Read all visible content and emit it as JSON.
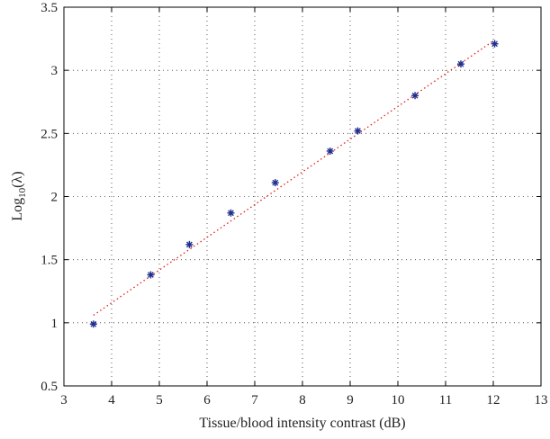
{
  "chart_data": {
    "type": "scatter",
    "xlabel": "Tissue/blood intensity contrast (dB)",
    "ylabel": {
      "base": "Log",
      "subscript": "10",
      "arg": "(λ)"
    },
    "xlim": [
      3,
      13
    ],
    "ylim": [
      0.5,
      3.5
    ],
    "xticks": [
      "3",
      "4",
      "5",
      "6",
      "7",
      "8",
      "9",
      "10",
      "11",
      "12",
      "13"
    ],
    "yticks": [
      "0.5",
      "1",
      "1.5",
      "2",
      "2.5",
      "3",
      "3.5"
    ],
    "grid": true,
    "series": [
      {
        "marker": "asterisk",
        "color": "#1f2f8f",
        "x": [
          3.62,
          4.82,
          5.63,
          6.5,
          7.43,
          8.58,
          9.16,
          10.36,
          11.32,
          12.03
        ],
        "y": [
          0.99,
          1.38,
          1.62,
          1.87,
          2.11,
          2.36,
          2.52,
          2.8,
          3.05,
          3.21
        ]
      },
      {
        "style": "dotted-line",
        "color": "#e0201b",
        "x": [
          3.62,
          12.03
        ],
        "y": [
          1.06,
          3.24
        ]
      }
    ]
  }
}
